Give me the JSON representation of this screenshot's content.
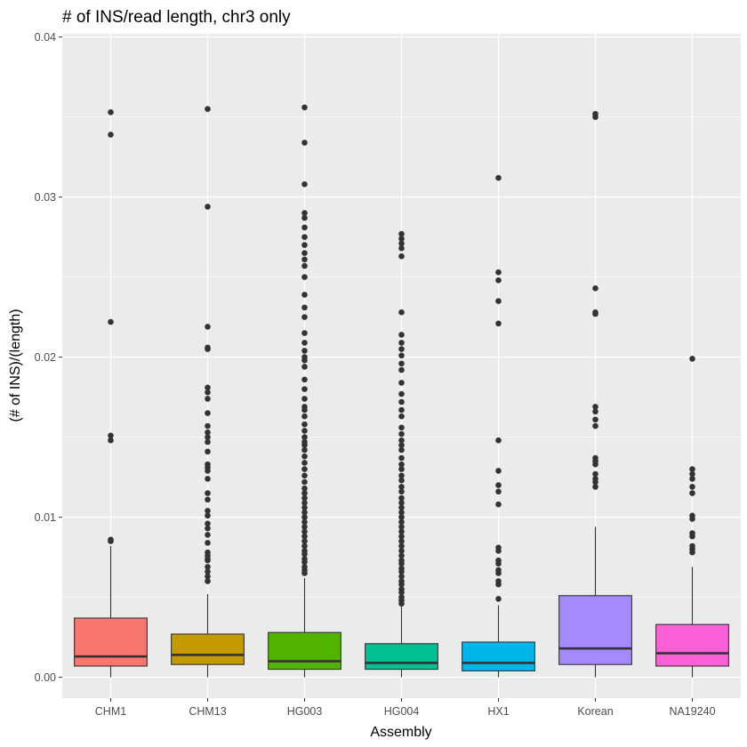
{
  "chart_data": {
    "type": "boxplot",
    "title": "# of INS/read length, chr3 only",
    "xlabel": "Assembly",
    "ylabel": "(# of INS)/(length)",
    "ylim": [
      -0.0013,
      0.0402
    ],
    "yticks": [
      0.0,
      0.01,
      0.02,
      0.03,
      0.04
    ],
    "ytick_labels": [
      "0.00",
      "0.01",
      "0.02",
      "0.03",
      "0.04"
    ],
    "grid": true,
    "categories": [
      "CHM1",
      "CHM13",
      "HG003",
      "HG004",
      "HX1",
      "Korean",
      "NA19240"
    ],
    "colors": [
      "#F8766D",
      "#C49A00",
      "#53B400",
      "#00C094",
      "#00B6EB",
      "#A58AFF",
      "#FB61D7"
    ],
    "boxes": [
      {
        "name": "CHM1",
        "min": 0.0,
        "q1": 0.0007,
        "median": 0.0013,
        "q3": 0.0037,
        "max": 0.0082,
        "outliers": [
          0.0353,
          0.0339,
          0.0222,
          0.0151,
          0.0148,
          0.0086,
          0.0085
        ]
      },
      {
        "name": "CHM13",
        "min": 0.0,
        "q1": 0.0008,
        "median": 0.0014,
        "q3": 0.0027,
        "max": 0.0052,
        "outliers": [
          0.0355,
          0.0294,
          0.0219,
          0.0206,
          0.0205,
          0.0181,
          0.0178,
          0.0174,
          0.0165,
          0.0157,
          0.0153,
          0.015,
          0.0147,
          0.0141,
          0.0133,
          0.0131,
          0.0129,
          0.0124,
          0.0115,
          0.0111,
          0.0104,
          0.0101,
          0.0096,
          0.0093,
          0.0089,
          0.0084,
          0.0078,
          0.0076,
          0.0074,
          0.0073,
          0.0069,
          0.0066,
          0.0063,
          0.006
        ]
      },
      {
        "name": "HG003",
        "min": 0.0,
        "q1": 0.0005,
        "median": 0.001,
        "q3": 0.0028,
        "max": 0.0062,
        "outliers": [
          0.0356,
          0.0334,
          0.0308,
          0.029,
          0.0287,
          0.0281,
          0.0275,
          0.027,
          0.0265,
          0.0261,
          0.0257,
          0.025,
          0.0239,
          0.0231,
          0.0225,
          0.0215,
          0.0209,
          0.0204,
          0.02,
          0.0198,
          0.0194,
          0.0186,
          0.018,
          0.0174,
          0.0169,
          0.0167,
          0.0163,
          0.0158,
          0.0154,
          0.015,
          0.0147,
          0.0145,
          0.0142,
          0.0138,
          0.0134,
          0.013,
          0.0126,
          0.0122,
          0.0118,
          0.0115,
          0.0112,
          0.0109,
          0.0106,
          0.0103,
          0.01,
          0.0097,
          0.0094,
          0.0091,
          0.0088,
          0.0085,
          0.0082,
          0.0079,
          0.0077,
          0.0074,
          0.0072,
          0.0069,
          0.0067,
          0.0065
        ]
      },
      {
        "name": "HG004",
        "min": 0.0,
        "q1": 0.0005,
        "median": 0.0009,
        "q3": 0.0021,
        "max": 0.0045,
        "outliers": [
          0.0277,
          0.0274,
          0.0271,
          0.0268,
          0.0263,
          0.0228,
          0.0214,
          0.0209,
          0.0205,
          0.0201,
          0.0196,
          0.0192,
          0.0184,
          0.0177,
          0.0172,
          0.0167,
          0.0163,
          0.0156,
          0.0152,
          0.0148,
          0.0145,
          0.0142,
          0.0137,
          0.0133,
          0.013,
          0.0126,
          0.0123,
          0.0119,
          0.0116,
          0.0112,
          0.0109,
          0.0106,
          0.0103,
          0.01,
          0.0097,
          0.0094,
          0.0091,
          0.0088,
          0.0085,
          0.0082,
          0.0079,
          0.0076,
          0.0073,
          0.0071,
          0.0068,
          0.0066,
          0.0063,
          0.006,
          0.0058,
          0.0055,
          0.0053,
          0.005,
          0.0048,
          0.0046
        ]
      },
      {
        "name": "HX1",
        "min": 0.0,
        "q1": 0.0004,
        "median": 0.0009,
        "q3": 0.0022,
        "max": 0.0045,
        "outliers": [
          0.0312,
          0.0253,
          0.0248,
          0.0235,
          0.0221,
          0.0148,
          0.0129,
          0.012,
          0.0116,
          0.0108,
          0.0081,
          0.0079,
          0.0073,
          0.0071,
          0.0067,
          0.0065,
          0.006,
          0.0058,
          0.0049
        ]
      },
      {
        "name": "Korean",
        "min": 0.0,
        "q1": 0.0008,
        "median": 0.0018,
        "q3": 0.0051,
        "max": 0.0094,
        "outliers": [
          0.0352,
          0.035,
          0.0243,
          0.0228,
          0.0227,
          0.0169,
          0.0166,
          0.0161,
          0.0157,
          0.0137,
          0.0135,
          0.0133,
          0.0127,
          0.0124,
          0.0122,
          0.0119
        ]
      },
      {
        "name": "NA19240",
        "min": 0.0,
        "q1": 0.0007,
        "median": 0.0015,
        "q3": 0.0033,
        "max": 0.0069,
        "outliers": [
          0.0199,
          0.013,
          0.0127,
          0.0124,
          0.0119,
          0.0115,
          0.0101,
          0.0099,
          0.009,
          0.0088,
          0.0082,
          0.008,
          0.0078
        ]
      }
    ]
  }
}
